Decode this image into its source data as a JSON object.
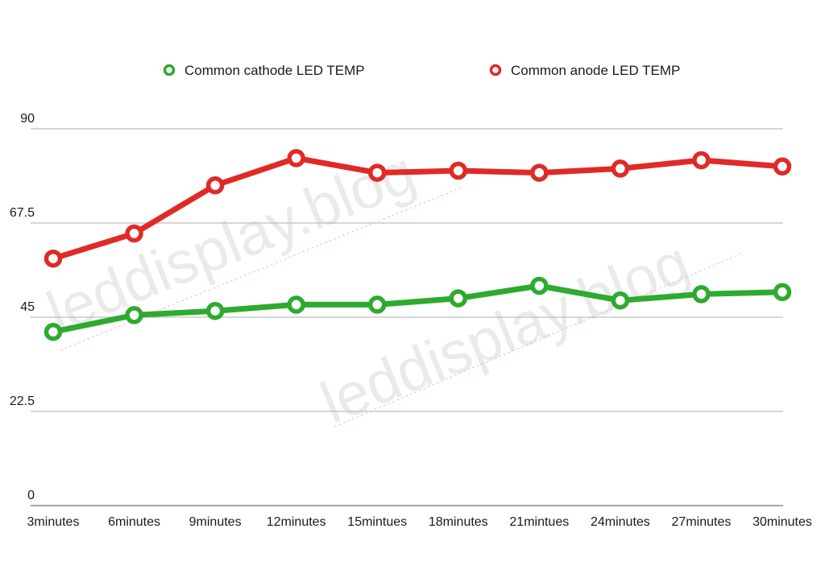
{
  "watermark": {
    "text_1": "leddisplay.blog",
    "text_2": "leddisplay.blog"
  },
  "chart_data": {
    "type": "line",
    "categories": [
      "3minutes",
      "6minutes",
      "9minutes",
      "12minutes",
      "15mintues",
      "18minutes",
      "21mintues",
      "24minutes",
      "27minutes",
      "30minutes"
    ],
    "yticks": [
      "0",
      "22.5",
      "45",
      "67.5",
      "90"
    ],
    "ylim": [
      0,
      90
    ],
    "grid": true,
    "legend_position": "top-center",
    "series": [
      {
        "name": "Common cathode LED TEMP",
        "color": "#2eaa2e",
        "values": [
          41.5,
          45.5,
          46.5,
          48,
          48,
          49.5,
          52.5,
          49,
          50.5,
          51
        ]
      },
      {
        "name": "Common anode LED TEMP",
        "color": "#e02a27",
        "values": [
          59,
          65,
          76.5,
          83,
          79.5,
          80,
          79.5,
          80.5,
          82.5,
          81
        ]
      }
    ]
  }
}
